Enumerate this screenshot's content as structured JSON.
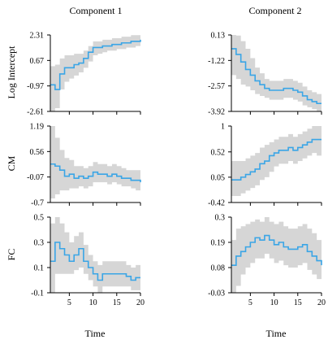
{
  "chart_data": {
    "type": "line",
    "layout": "3x2 small multiples, step lines with shaded uncertainty bands",
    "column_titles": [
      "Component 1",
      "Component 2"
    ],
    "row_labels": [
      "Log Intercept",
      "CM",
      "FC"
    ],
    "xlabel": "Time",
    "xlim": [
      1,
      20
    ],
    "xticks": [
      5,
      10,
      15,
      20
    ],
    "colors": {
      "line": "#3aa5e6",
      "band": "#d6d6d6",
      "axis": "#000000"
    },
    "grid": false,
    "panels": [
      {
        "row": "Log Intercept",
        "column": "Component 1",
        "ylim": [
          -2.61,
          2.31
        ],
        "yticks": [
          -2.61,
          -0.97,
          0.67,
          2.31
        ],
        "x": [
          1,
          2,
          3,
          4,
          5,
          6,
          7,
          8,
          9,
          10,
          11,
          12,
          13,
          14,
          15,
          16,
          17,
          18,
          19,
          20
        ],
        "y": [
          -0.9,
          -1.2,
          -0.2,
          0.2,
          0.2,
          0.4,
          0.5,
          0.8,
          1.2,
          1.5,
          1.5,
          1.6,
          1.6,
          1.7,
          1.7,
          1.8,
          1.8,
          1.9,
          1.9,
          2.0
        ],
        "lower": [
          -2.61,
          -2.4,
          -1.2,
          -0.7,
          -0.5,
          -0.3,
          -0.1,
          0.2,
          0.6,
          1.0,
          1.1,
          1.2,
          1.3,
          1.3,
          1.4,
          1.4,
          1.5,
          1.5,
          1.6,
          1.6
        ],
        "upper": [
          0.3,
          0.4,
          0.8,
          1.0,
          1.0,
          1.1,
          1.1,
          1.3,
          1.6,
          1.9,
          1.9,
          2.0,
          2.0,
          2.1,
          2.1,
          2.2,
          2.2,
          2.3,
          2.3,
          2.31
        ]
      },
      {
        "row": "Log Intercept",
        "column": "Component 2",
        "ylim": [
          -3.92,
          0.13
        ],
        "yticks": [
          -3.92,
          -2.57,
          -1.22,
          0.13
        ],
        "x": [
          1,
          2,
          3,
          4,
          5,
          6,
          7,
          8,
          9,
          10,
          11,
          12,
          13,
          14,
          15,
          16,
          17,
          18,
          19,
          20
        ],
        "y": [
          -0.6,
          -0.9,
          -1.3,
          -1.7,
          -2.0,
          -2.3,
          -2.5,
          -2.7,
          -2.8,
          -2.8,
          -2.8,
          -2.7,
          -2.7,
          -2.8,
          -2.9,
          -3.1,
          -3.3,
          -3.4,
          -3.5,
          -3.5
        ],
        "lower": [
          -2.0,
          -2.2,
          -2.5,
          -2.6,
          -2.8,
          -3.0,
          -3.1,
          -3.2,
          -3.3,
          -3.3,
          -3.3,
          -3.2,
          -3.2,
          -3.3,
          -3.4,
          -3.6,
          -3.7,
          -3.8,
          -3.9,
          -3.92
        ],
        "upper": [
          0.13,
          0.1,
          -0.2,
          -0.6,
          -1.1,
          -1.6,
          -1.9,
          -2.2,
          -2.3,
          -2.3,
          -2.3,
          -2.2,
          -2.2,
          -2.3,
          -2.4,
          -2.6,
          -2.8,
          -2.9,
          -3.0,
          -3.0
        ]
      },
      {
        "row": "CM",
        "column": "Component 1",
        "ylim": [
          -0.7,
          1.19
        ],
        "yticks": [
          -0.7,
          -0.07,
          0.56,
          1.19
        ],
        "x": [
          1,
          2,
          3,
          4,
          5,
          6,
          7,
          8,
          9,
          10,
          11,
          12,
          13,
          14,
          15,
          16,
          17,
          18,
          19,
          20
        ],
        "y": [
          0.25,
          0.2,
          0.1,
          -0.05,
          0.0,
          -0.1,
          -0.05,
          -0.1,
          -0.05,
          0.05,
          0.0,
          0.0,
          -0.05,
          0.0,
          -0.05,
          -0.1,
          -0.1,
          -0.15,
          -0.15,
          -0.2
        ],
        "lower": [
          -0.6,
          -0.5,
          -0.4,
          -0.4,
          -0.35,
          -0.35,
          -0.3,
          -0.35,
          -0.3,
          -0.2,
          -0.2,
          -0.2,
          -0.25,
          -0.2,
          -0.25,
          -0.3,
          -0.3,
          -0.35,
          -0.4,
          -0.45
        ],
        "upper": [
          1.19,
          0.9,
          0.6,
          0.4,
          0.35,
          0.2,
          0.2,
          0.15,
          0.2,
          0.3,
          0.25,
          0.25,
          0.2,
          0.25,
          0.2,
          0.15,
          0.1,
          0.1,
          0.1,
          0.05
        ]
      },
      {
        "row": "CM",
        "column": "Component 2",
        "ylim": [
          -0.42,
          1.0
        ],
        "yticks": [
          -0.42,
          0.05,
          0.52,
          1.0
        ],
        "x": [
          1,
          2,
          3,
          4,
          5,
          6,
          7,
          8,
          9,
          10,
          11,
          12,
          13,
          14,
          15,
          16,
          17,
          18,
          19,
          20
        ],
        "y": [
          0.0,
          0.0,
          0.05,
          0.1,
          0.15,
          0.2,
          0.3,
          0.35,
          0.45,
          0.5,
          0.55,
          0.55,
          0.6,
          0.55,
          0.6,
          0.65,
          0.7,
          0.75,
          0.75,
          0.75
        ],
        "lower": [
          -0.3,
          -0.3,
          -0.25,
          -0.2,
          -0.15,
          -0.1,
          0.0,
          0.05,
          0.15,
          0.25,
          0.3,
          0.3,
          0.35,
          0.3,
          0.35,
          0.4,
          0.45,
          0.5,
          0.45,
          0.45
        ],
        "upper": [
          0.35,
          0.35,
          0.35,
          0.4,
          0.45,
          0.5,
          0.6,
          0.65,
          0.7,
          0.75,
          0.8,
          0.8,
          0.85,
          0.8,
          0.85,
          0.9,
          0.95,
          1.0,
          1.0,
          1.0
        ]
      },
      {
        "row": "FC",
        "column": "Component 1",
        "ylim": [
          -0.1,
          0.5
        ],
        "yticks": [
          -0.1,
          0.1,
          0.3,
          0.5
        ],
        "x": [
          1,
          2,
          3,
          4,
          5,
          6,
          7,
          8,
          9,
          10,
          11,
          12,
          13,
          14,
          15,
          16,
          17,
          18,
          19,
          20
        ],
        "y": [
          0.15,
          0.3,
          0.25,
          0.2,
          0.15,
          0.2,
          0.25,
          0.15,
          0.1,
          0.05,
          0.0,
          0.05,
          0.05,
          0.05,
          0.05,
          0.05,
          0.03,
          0.0,
          0.02,
          0.02
        ],
        "lower": [
          -0.1,
          0.05,
          0.05,
          0.05,
          0.05,
          0.08,
          0.1,
          0.05,
          0.0,
          -0.05,
          -0.1,
          -0.05,
          -0.05,
          -0.05,
          -0.05,
          -0.05,
          -0.05,
          -0.08,
          -0.08,
          -0.08
        ],
        "upper": [
          0.45,
          0.5,
          0.45,
          0.38,
          0.3,
          0.35,
          0.38,
          0.28,
          0.2,
          0.15,
          0.12,
          0.15,
          0.15,
          0.15,
          0.15,
          0.15,
          0.12,
          0.1,
          0.12,
          0.12
        ]
      },
      {
        "row": "FC",
        "column": "Component 2",
        "ylim": [
          -0.03,
          0.3
        ],
        "yticks": [
          -0.03,
          0.08,
          0.19,
          0.3
        ],
        "x": [
          1,
          2,
          3,
          4,
          5,
          6,
          7,
          8,
          9,
          10,
          11,
          12,
          13,
          14,
          15,
          16,
          17,
          18,
          19,
          20
        ],
        "y": [
          0.09,
          0.13,
          0.15,
          0.17,
          0.19,
          0.21,
          0.2,
          0.22,
          0.2,
          0.18,
          0.19,
          0.17,
          0.16,
          0.16,
          0.17,
          0.18,
          0.15,
          0.13,
          0.11,
          0.09
        ],
        "lower": [
          -0.03,
          0.0,
          0.05,
          0.08,
          0.1,
          0.12,
          0.12,
          0.14,
          0.12,
          0.1,
          0.11,
          0.09,
          0.08,
          0.08,
          0.09,
          0.1,
          0.07,
          0.05,
          0.03,
          0.0
        ],
        "upper": [
          0.2,
          0.25,
          0.26,
          0.27,
          0.28,
          0.29,
          0.28,
          0.3,
          0.28,
          0.27,
          0.28,
          0.26,
          0.25,
          0.25,
          0.26,
          0.27,
          0.25,
          0.23,
          0.2,
          0.18
        ]
      }
    ]
  }
}
